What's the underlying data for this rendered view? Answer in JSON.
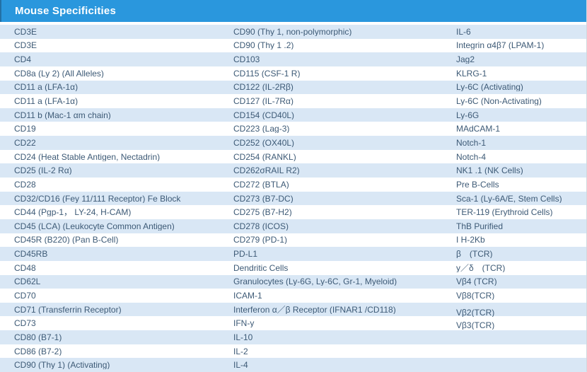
{
  "header": {
    "title": "Mouse Specificities",
    "background_color": "#2a97dd",
    "text_color": "#ffffff"
  },
  "table": {
    "stripe_color": "#d9e7f5",
    "text_color": "#3d5a76",
    "rows": [
      {
        "cells": [
          "CD3E",
          "CD90 (Thy 1, non-polymorphic)",
          "IL-6"
        ]
      },
      {
        "cells": [
          "CD3E",
          "CD90 (Thy 1 .2)",
          "Integrin α4β7 (LPAM-1)"
        ]
      },
      {
        "cells": [
          "CD4",
          "CD103",
          "Jag2"
        ]
      },
      {
        "cells": [
          "CD8a (Ly 2) (All Alleles)",
          "CD115 (CSF-1 R)",
          "KLRG-1"
        ]
      },
      {
        "cells": [
          "CD11 a (LFA-1α)",
          "CD122 (IL-2Rβ)",
          "Ly-6C (Activating)"
        ]
      },
      {
        "cells": [
          "CD11 a (LFA-1α)",
          "CD127 (IL-7Rα)",
          "Ly-6C (Non-Activating)"
        ]
      },
      {
        "cells": [
          "CD11 b (Mac-1 αm chain)",
          "CD154 (CD40L)",
          "Ly-6G"
        ]
      },
      {
        "cells": [
          "CD19",
          "CD223 (Lag-3)",
          "MAdCAM-1"
        ]
      },
      {
        "cells": [
          "CD22",
          "CD252 (OX40L)",
          "Notch-1"
        ]
      },
      {
        "cells": [
          "CD24 (Heat Stable Antigen, Nectadrin)",
          "CD254 (RANKL)",
          "Notch-4"
        ]
      },
      {
        "cells": [
          "CD25 (IL-2 Rα)",
          "CD262σRAIL R2)",
          "NK1 .1 (NK Cells)"
        ]
      },
      {
        "cells": [
          "CD28",
          "CD272 (BTLA)",
          "Pre B-Cells"
        ]
      },
      {
        "cells": [
          "CD32/CD16 (Fey 11/111 Receptor) Fe Block",
          "CD273 (B7-DC)",
          "Sca-1 (Ly-6A/E, Stem Cells)"
        ]
      },
      {
        "cells": [
          "CD44 (Pgp-1， LY-24, H-CAM)",
          "CD275 (B7-H2)",
          "TER-119 (Erythroid Cells)"
        ]
      },
      {
        "cells": [
          "CD45 (LCA) (Leukocyte Common Antigen)",
          "CD278 (ICOS)",
          "ThB Purified"
        ]
      },
      {
        "cells": [
          "CD45R (B220) (Pan B-Cell)",
          "CD279 (PD-1)",
          "I H-2Kb"
        ]
      },
      {
        "cells": [
          "CD45RB",
          "PD-L1",
          "β　(TCR)"
        ]
      },
      {
        "cells": [
          "CD48",
          "Dendritic Cells",
          "y／δ　(TCR)"
        ]
      },
      {
        "cells": [
          "CD62L",
          "Granulocytes (Ly-6G, Ly-6C, Gr-1, Myeloid)",
          "Vβ4 (TCR)"
        ]
      },
      {
        "cells": [
          "CD70",
          "ICAM-1",
          "Vβ8(TCR)"
        ]
      },
      {
        "cells": [
          "CD71 (Transferrin Receptor)",
          "Interferon α／β Receptor (IFNAR1 /CD118)",
          "Vβ2(TCR)"
        ]
      },
      {
        "cells": [
          "CD73",
          "IFN-y",
          "Vβ3(TCR)"
        ]
      },
      {
        "cells": [
          "CD80 (B7-1)",
          "IL-10",
          ""
        ]
      },
      {
        "cells": [
          "CD86 (B7-2)",
          "IL-2",
          ""
        ]
      },
      {
        "cells": [
          "CD90 (Thy 1) (Activating)",
          "IL-4",
          ""
        ]
      }
    ]
  }
}
